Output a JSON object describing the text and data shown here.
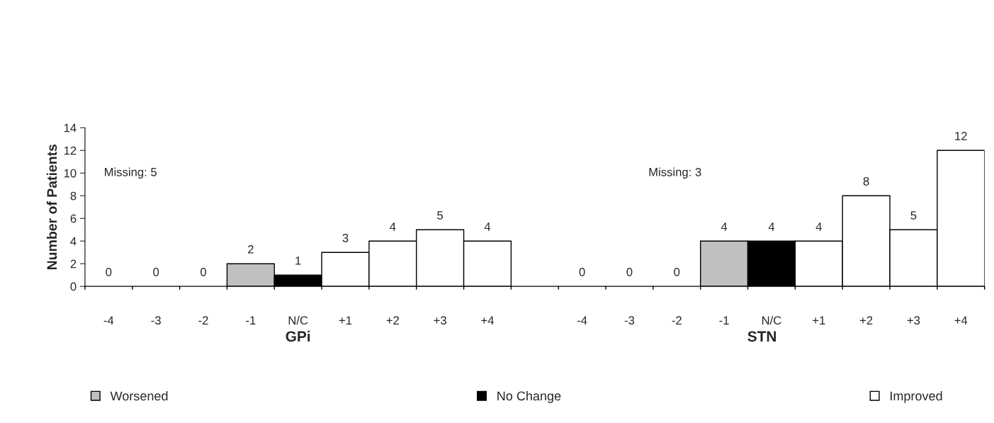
{
  "chart_data": {
    "type": "bar",
    "ylabel": "Number of Patients",
    "categories": [
      "-4",
      "-3",
      "-2",
      "-1",
      "N/C",
      "+1",
      "+2",
      "+3",
      "+4",
      null,
      "-4",
      "-3",
      "-2",
      "-1",
      "N/C",
      "+1",
      "+2",
      "+3",
      "+4"
    ],
    "series": [
      {
        "name": "Worsened",
        "color": "#c0c0c0",
        "values": [
          0,
          0,
          0,
          2,
          null,
          null,
          null,
          null,
          null,
          null,
          0,
          0,
          0,
          4,
          null,
          null,
          null,
          null,
          null
        ]
      },
      {
        "name": "No Change",
        "color": "#000000",
        "values": [
          null,
          null,
          null,
          null,
          1,
          null,
          null,
          null,
          null,
          null,
          null,
          null,
          null,
          null,
          4,
          null,
          null,
          null,
          null
        ]
      },
      {
        "name": "Improved",
        "color": "#ffffff",
        "values": [
          null,
          null,
          null,
          null,
          null,
          3,
          4,
          5,
          4,
          null,
          null,
          null,
          null,
          null,
          null,
          4,
          8,
          5,
          12
        ]
      }
    ],
    "ylim": [
      0,
      14
    ],
    "yticks": [
      0,
      2,
      4,
      6,
      8,
      10,
      12,
      14
    ],
    "data_labels": true,
    "legend": "bottom",
    "grid": false,
    "annotations": [
      "Missing: 5",
      "Missing: 3",
      "GPi",
      "STN"
    ]
  }
}
